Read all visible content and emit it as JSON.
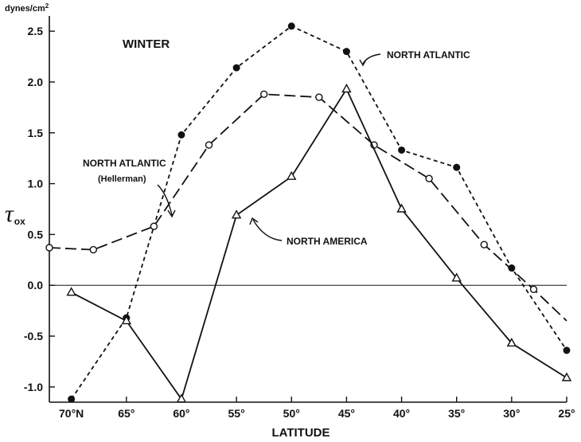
{
  "chart_data": {
    "type": "line",
    "title": "WINTER",
    "xlabel": "LATITUDE",
    "ylabel": "τ",
    "ylabel_sub": "ox",
    "y_units": "dynes/cm",
    "y_units_sup": "2",
    "xlim": [
      72,
      25
    ],
    "ylim": [
      -1.15,
      2.65
    ],
    "x_ticks": [
      {
        "value": 70,
        "label": "70°N"
      },
      {
        "value": 65,
        "label": "65°"
      },
      {
        "value": 60,
        "label": "60°"
      },
      {
        "value": 55,
        "label": "55°"
      },
      {
        "value": 50,
        "label": "50°"
      },
      {
        "value": 45,
        "label": "45°"
      },
      {
        "value": 40,
        "label": "40°"
      },
      {
        "value": 35,
        "label": "35°"
      },
      {
        "value": 30,
        "label": "30°"
      },
      {
        "value": 25,
        "label": "25°"
      }
    ],
    "y_ticks": [
      {
        "value": 2.5,
        "label": "2.5"
      },
      {
        "value": 2.0,
        "label": "2.0"
      },
      {
        "value": 1.5,
        "label": "1.5"
      },
      {
        "value": 1.0,
        "label": "1.0"
      },
      {
        "value": 0.5,
        "label": "0.5"
      },
      {
        "value": 0.0,
        "label": "0.0"
      },
      {
        "value": -0.5,
        "label": "-0.5"
      },
      {
        "value": -1.0,
        "label": "-1.0"
      }
    ],
    "series": [
      {
        "name": "NORTH ATLANTIC",
        "marker": "filled-circle",
        "line": "short-dash",
        "x": [
          70,
          65,
          60,
          55,
          50,
          45,
          40,
          35,
          30,
          25
        ],
        "y": [
          -1.12,
          -0.32,
          1.48,
          2.14,
          2.55,
          2.3,
          1.33,
          1.16,
          0.17,
          -0.64
        ]
      },
      {
        "name": "NORTH ATLANTIC (Hellerman)",
        "label_line1": "NORTH ATLANTIC",
        "label_line2": "(Hellerman)",
        "marker": "open-circle",
        "line": "long-dash",
        "x": [
          72,
          68,
          62.5,
          57.5,
          52.5,
          47.5,
          42.5,
          37.5,
          32.5,
          28,
          25
        ],
        "y": [
          0.37,
          0.35,
          0.58,
          1.38,
          1.88,
          1.85,
          1.38,
          1.05,
          0.4,
          -0.04,
          -0.35
        ],
        "marked_points": 10
      },
      {
        "name": "NORTH AMERICA",
        "marker": "open-triangle",
        "line": "solid",
        "x": [
          70,
          65,
          60,
          55,
          50,
          45,
          40,
          35,
          30,
          25
        ],
        "y": [
          -0.07,
          -0.35,
          -1.12,
          0.69,
          1.07,
          1.93,
          0.75,
          0.07,
          -0.57,
          -0.91
        ]
      }
    ]
  }
}
